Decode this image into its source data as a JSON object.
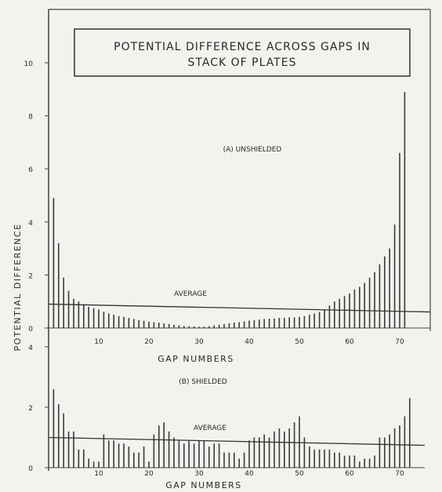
{
  "chart_data": [
    {
      "type": "bar",
      "title": "POTENTIAL DIFFERENCE ACROSS GAPS IN STACK OF PLATES",
      "title_lines": [
        "POTENTIAL DIFFERENCE ACROSS GAPS IN",
        "STACK OF PLATES"
      ],
      "panel_label": "(A) UNSHIELDED",
      "xlabel": "GAP NUMBERS",
      "ylabel": "POTENTIAL DIFFERENCE",
      "average_label": "AVERAGE",
      "average": 0.9,
      "xlim": [
        0,
        74
      ],
      "ylim": [
        0,
        11
      ],
      "x_ticks": [
        10,
        20,
        30,
        40,
        50,
        60,
        70
      ],
      "y_ticks": [
        0,
        2,
        4,
        6,
        8,
        10
      ],
      "x": [
        1,
        2,
        3,
        4,
        5,
        6,
        7,
        8,
        9,
        10,
        11,
        12,
        13,
        14,
        15,
        16,
        17,
        18,
        19,
        20,
        21,
        22,
        23,
        24,
        25,
        26,
        27,
        28,
        29,
        30,
        31,
        32,
        33,
        34,
        35,
        36,
        37,
        38,
        39,
        40,
        41,
        42,
        43,
        44,
        45,
        46,
        47,
        48,
        49,
        50,
        51,
        52,
        53,
        54,
        55,
        56,
        57,
        58,
        59,
        60,
        61,
        62,
        63,
        64,
        65,
        66,
        67,
        68,
        69,
        70,
        71,
        72
      ],
      "values": [
        4.9,
        3.2,
        1.9,
        1.4,
        1.1,
        1.0,
        0.9,
        0.8,
        0.75,
        0.7,
        0.62,
        0.55,
        0.5,
        0.45,
        0.42,
        0.38,
        0.34,
        0.3,
        0.27,
        0.24,
        0.22,
        0.2,
        0.17,
        0.15,
        0.12,
        0.1,
        0.08,
        0.07,
        0.06,
        0.05,
        0.05,
        0.07,
        0.1,
        0.12,
        0.15,
        0.18,
        0.2,
        0.22,
        0.25,
        0.28,
        0.3,
        0.32,
        0.34,
        0.35,
        0.36,
        0.38,
        0.38,
        0.4,
        0.4,
        0.42,
        0.45,
        0.5,
        0.55,
        0.6,
        0.7,
        0.85,
        1.0,
        1.1,
        1.2,
        1.3,
        1.45,
        1.55,
        1.7,
        1.9,
        2.1,
        2.4,
        2.7,
        3.0,
        3.9,
        6.6,
        8.9,
        0
      ]
    },
    {
      "type": "bar",
      "panel_label": "(B) SHIELDED",
      "xlabel": "GAP NUMBERS",
      "average_label": "AVERAGE",
      "average": 1.0,
      "xlim": [
        0,
        74
      ],
      "ylim": [
        0,
        4
      ],
      "x_ticks": [
        10,
        20,
        30,
        40,
        50,
        60,
        70
      ],
      "x_tick_labels": [
        "10",
        "20",
        "30",
        "40",
        "50",
        "60",
        "70"
      ],
      "y_ticks": [
        0,
        2,
        4
      ],
      "x": [
        1,
        2,
        3,
        4,
        5,
        6,
        7,
        8,
        9,
        10,
        11,
        12,
        13,
        14,
        15,
        16,
        17,
        18,
        19,
        20,
        21,
        22,
        23,
        24,
        25,
        26,
        27,
        28,
        29,
        30,
        31,
        32,
        33,
        34,
        35,
        36,
        37,
        38,
        39,
        40,
        41,
        42,
        43,
        44,
        45,
        46,
        47,
        48,
        49,
        50,
        51,
        52,
        53,
        54,
        55,
        56,
        57,
        58,
        59,
        60,
        61,
        62,
        63,
        64,
        65,
        66,
        67,
        68,
        69,
        70,
        71,
        72
      ],
      "values": [
        2.6,
        2.1,
        1.8,
        1.2,
        1.2,
        0.6,
        0.6,
        0.3,
        0.2,
        0.2,
        1.1,
        0.9,
        0.9,
        0.8,
        0.8,
        0.7,
        0.5,
        0.5,
        0.7,
        0.2,
        1.1,
        1.4,
        1.5,
        1.2,
        1.0,
        0.9,
        0.8,
        0.9,
        0.8,
        0.9,
        0.9,
        0.7,
        0.8,
        0.8,
        0.5,
        0.5,
        0.5,
        0.3,
        0.5,
        0.9,
        1.0,
        1.0,
        1.1,
        1.0,
        1.2,
        1.3,
        1.2,
        1.3,
        1.5,
        1.7,
        1.0,
        0.7,
        0.6,
        0.6,
        0.6,
        0.6,
        0.5,
        0.5,
        0.4,
        0.4,
        0.4,
        0.2,
        0.3,
        0.3,
        0.4,
        1.0,
        1.0,
        1.1,
        1.3,
        1.4,
        1.7,
        2.3
      ]
    }
  ]
}
